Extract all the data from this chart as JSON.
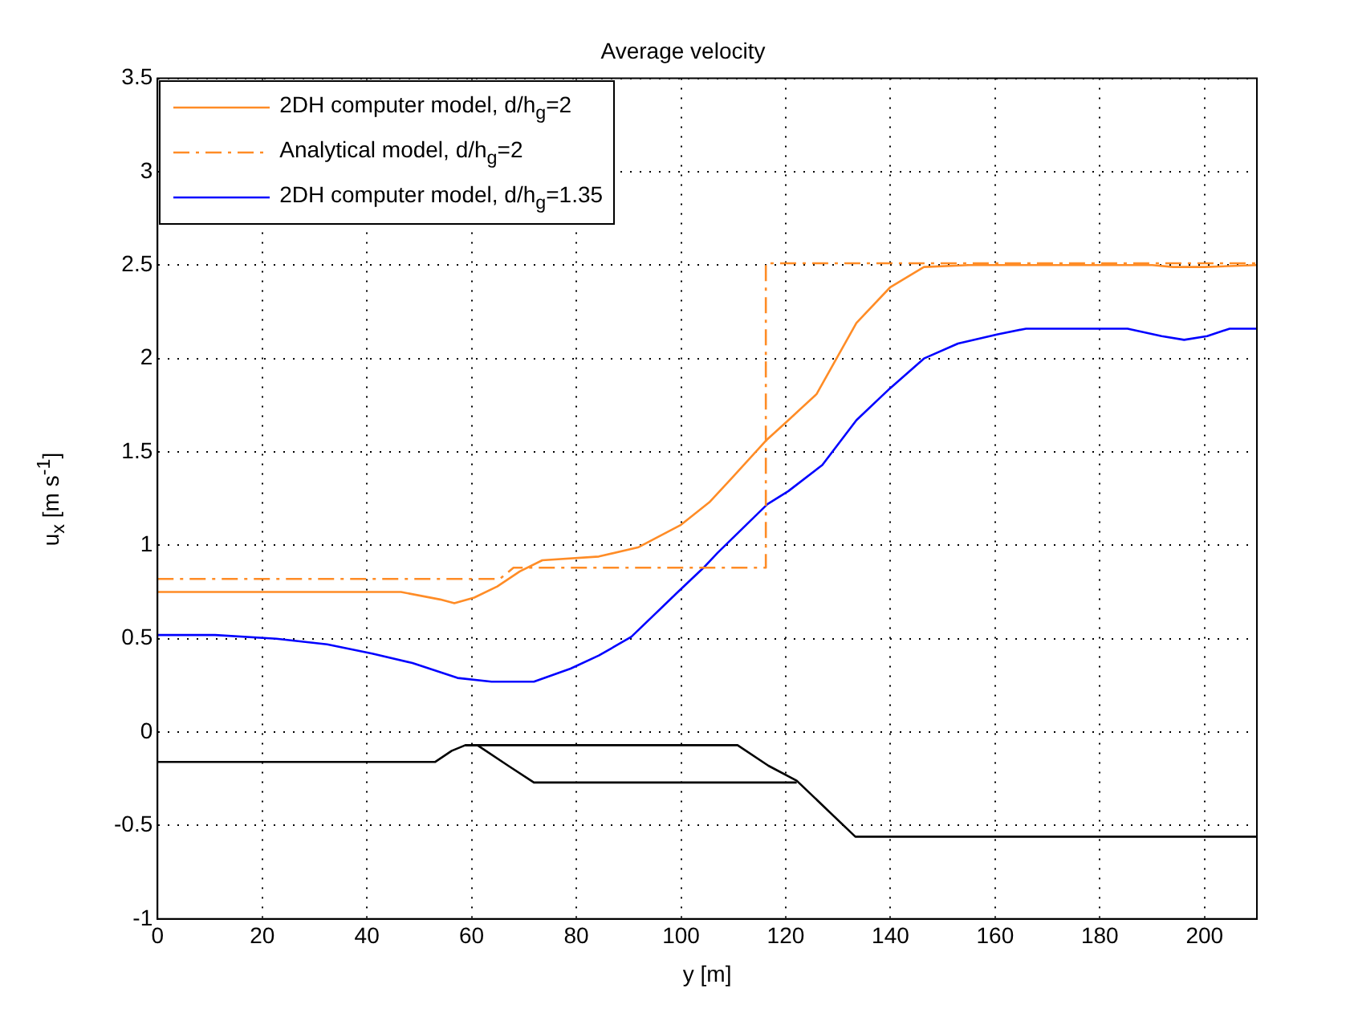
{
  "chart_data": {
    "type": "line",
    "title": "Average velocity",
    "xlabel": "y [m]",
    "ylabel": "u$_{x}$ [m s$^{-1}$]",
    "xlim": [
      0,
      210
    ],
    "xticks": [
      0,
      20,
      40,
      60,
      80,
      100,
      120,
      140,
      160,
      180,
      200
    ],
    "ylim": [
      -1,
      3.5
    ],
    "yticks": [
      -1,
      -0.5,
      0,
      0.5,
      1,
      1.5,
      2,
      2.5,
      3,
      3.5
    ],
    "grid": true,
    "legend": "top left",
    "marker": "none",
    "series": [
      {
        "name": "2DH computer model, d/h$_{g}$=2",
        "color": "#ff8c26",
        "line_style": "solid",
        "x": [
          0,
          46.5,
          54,
          56.7,
          60.5,
          64.9,
          69.2,
          73.5,
          84.3,
          91.9,
          100,
          105.4,
          109.7,
          116.2,
          120.5,
          125.9,
          133.5,
          139.9,
          146.4,
          155,
          190,
          194,
          200,
          210
        ],
        "values": [
          0.75,
          0.75,
          0.71,
          0.69,
          0.72,
          0.78,
          0.86,
          0.92,
          0.94,
          0.99,
          1.11,
          1.23,
          1.36,
          1.56,
          1.67,
          1.81,
          2.19,
          2.38,
          2.49,
          2.5,
          2.5,
          2.49,
          2.49,
          2.5
        ]
      },
      {
        "name": "Analytical model, d/h$_{g}$=2",
        "color": "#ff8c26",
        "line_style": "dashed",
        "x": [
          0,
          65.4,
          68,
          116.2,
          116.2,
          210
        ],
        "values": [
          0.82,
          0.82,
          0.88,
          0.88,
          2.51,
          2.51
        ]
      },
      {
        "name": "2DH computer model, d/h$_{g}$=1.35",
        "color": "#0000ff",
        "line_style": "solid",
        "x": [
          0,
          11,
          22.7,
          32.4,
          41,
          48.7,
          57.3,
          63.8,
          71.9,
          78.9,
          84.3,
          90.5,
          99.4,
          104.3,
          107,
          116.5,
          120.5,
          127,
          133.5,
          139.9,
          146.4,
          152.9,
          160.5,
          165.9,
          185.3,
          191.8,
          196.1,
          200.5,
          204.8,
          210
        ],
        "values": [
          0.52,
          0.52,
          0.5,
          0.47,
          0.42,
          0.37,
          0.29,
          0.27,
          0.27,
          0.34,
          0.41,
          0.51,
          0.75,
          0.88,
          0.96,
          1.22,
          1.29,
          1.43,
          1.67,
          1.84,
          2.0,
          2.08,
          2.13,
          2.16,
          2.16,
          2.12,
          2.1,
          2.12,
          2.16,
          2.16
        ]
      },
      {
        "color": "#000000",
        "line_style": "solid",
        "x": [
          0,
          53,
          56.2,
          58.8,
          110.8,
          116.7,
          122.1,
          133.3,
          210
        ],
        "values": [
          -0.16,
          -0.16,
          -0.1,
          -0.07,
          -0.07,
          -0.18,
          -0.26,
          -0.56,
          -0.56
        ]
      },
      {
        "color": "#000000",
        "line_style": "solid",
        "x": [
          58.8,
          61.1,
          67,
          71.9,
          122.1
        ],
        "values": [
          -0.07,
          -0.07,
          -0.18,
          -0.27,
          -0.27
        ]
      }
    ]
  }
}
